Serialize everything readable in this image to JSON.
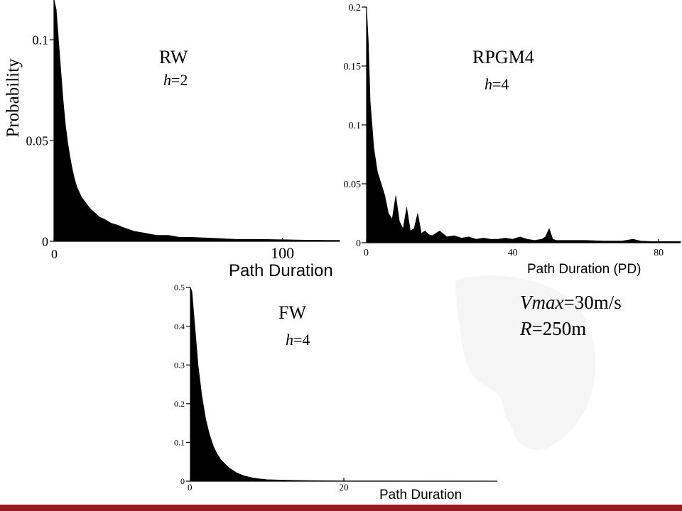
{
  "colors": {
    "fill": "#000000",
    "axis": "#000000",
    "footer_bar": "#9b1b22",
    "watermark": "#e6e6e6"
  },
  "chart_data": [
    {
      "type": "area",
      "title": "RW",
      "param": "h=2",
      "param_var": "h",
      "param_val": "=2",
      "xlabel": "Path Duration",
      "ylabel": "Probability",
      "xlim": [
        0,
        125
      ],
      "ylim": [
        0,
        0.12
      ],
      "x_ticks": [
        "0",
        "100"
      ],
      "y_ticks": [
        "0",
        "0.05",
        "0.1"
      ],
      "x": [
        0,
        1,
        2,
        3,
        4,
        5,
        6,
        7,
        8,
        9,
        10,
        12,
        14,
        16,
        18,
        20,
        22,
        25,
        28,
        30,
        35,
        40,
        45,
        50,
        55,
        60,
        70,
        80,
        90,
        100,
        110,
        120,
        125
      ],
      "values": [
        0.12,
        0.115,
        0.1,
        0.085,
        0.07,
        0.058,
        0.049,
        0.042,
        0.036,
        0.031,
        0.027,
        0.022,
        0.019,
        0.016,
        0.014,
        0.012,
        0.011,
        0.009,
        0.008,
        0.007,
        0.005,
        0.004,
        0.003,
        0.003,
        0.002,
        0.002,
        0.0015,
        0.001,
        0.001,
        0.0008,
        0.0006,
        0.0005,
        0.0005
      ]
    },
    {
      "type": "area",
      "title": "RPGM4",
      "param": "h=4",
      "param_var": "h",
      "param_val": "=4",
      "xlabel": "Path Duration (PD)",
      "ylabel": "",
      "xlim": [
        0,
        86
      ],
      "ylim": [
        0,
        0.2
      ],
      "x_ticks": [
        "0",
        "40",
        "80"
      ],
      "y_ticks": [
        "0",
        "0.05",
        "0.1",
        "0.15",
        "0.2"
      ],
      "x": [
        0,
        0.5,
        1,
        2,
        3,
        4,
        5,
        6,
        7,
        8,
        9,
        10,
        11,
        12,
        13,
        14,
        15,
        16,
        17,
        18,
        20,
        22,
        24,
        26,
        28,
        30,
        32,
        34,
        36,
        38,
        40,
        42,
        44,
        46,
        48,
        49,
        50,
        51,
        52,
        55,
        60,
        65,
        70,
        73,
        75,
        78,
        80,
        82,
        84,
        86
      ],
      "values": [
        0.2,
        0.17,
        0.12,
        0.08,
        0.06,
        0.05,
        0.04,
        0.025,
        0.02,
        0.04,
        0.018,
        0.012,
        0.03,
        0.01,
        0.012,
        0.025,
        0.008,
        0.01,
        0.007,
        0.006,
        0.01,
        0.005,
        0.006,
        0.004,
        0.005,
        0.003,
        0.004,
        0.003,
        0.003,
        0.004,
        0.003,
        0.005,
        0.003,
        0.002,
        0.003,
        0.005,
        0.012,
        0.003,
        0.002,
        0.002,
        0.002,
        0.0015,
        0.0015,
        0.003,
        0.0015,
        0.001,
        0.001,
        0.001,
        0.001,
        0.001
      ]
    },
    {
      "type": "area",
      "title": "FW",
      "param": "h=4",
      "param_var": "h",
      "param_val": "=4",
      "xlabel": "Path Duration",
      "ylabel": "",
      "xlim": [
        0,
        40
      ],
      "ylim": [
        0,
        0.5
      ],
      "x_ticks": [
        "0",
        "20"
      ],
      "y_ticks": [
        "0",
        "0.1",
        "0.2",
        "0.3",
        "0.4",
        "0.5"
      ],
      "x": [
        0,
        0.2,
        0.5,
        0.8,
        1,
        1.5,
        2,
        2.5,
        3,
        3.5,
        4,
        5,
        6,
        7,
        8,
        9,
        10,
        12,
        14,
        16,
        20,
        25,
        30,
        35,
        40
      ],
      "values": [
        0.5,
        0.49,
        0.42,
        0.35,
        0.3,
        0.22,
        0.16,
        0.12,
        0.09,
        0.07,
        0.055,
        0.035,
        0.022,
        0.014,
        0.009,
        0.006,
        0.004,
        0.003,
        0.002,
        0.0015,
        0.001,
        0.0008,
        0.0006,
        0.0005,
        0.0004
      ]
    }
  ],
  "notes": {
    "vmax_var": "Vmax",
    "vmax_val": "=30m/s",
    "r_var": "R",
    "r_val": "=250m"
  }
}
